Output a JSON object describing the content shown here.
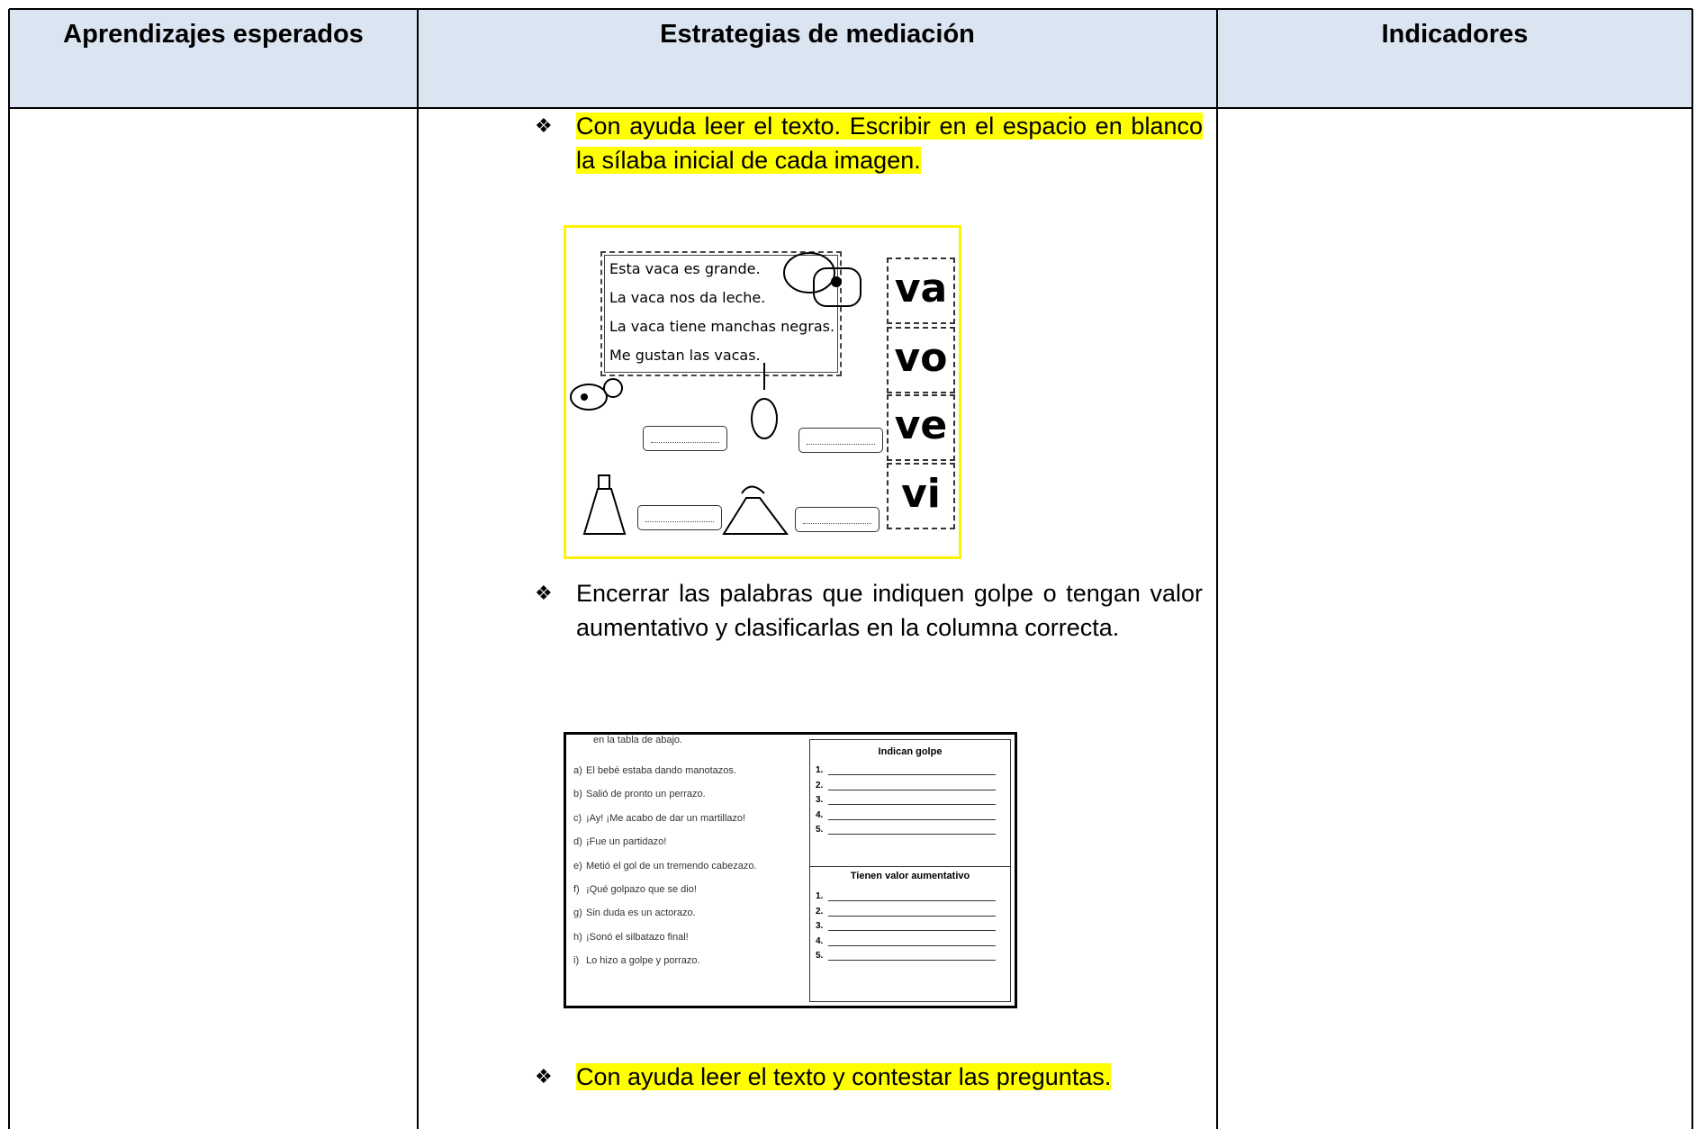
{
  "headers": [
    "Aprendizajes esperados",
    "Estrategias de mediación",
    "Indicadores"
  ],
  "strategies": [
    {
      "text": "Con ayuda leer el texto. Escribir en el espacio en blanco la sílaba inicial de cada imagen.",
      "highlight": true
    },
    {
      "text": "Encerrar las palabras que indiquen golpe o tengan valor aumentativo y clasificarlas en la columna correcta.",
      "highlight": false
    },
    {
      "text": "Con ayuda leer el texto y contestar las preguntas.",
      "highlight": true
    }
  ],
  "image1": {
    "sentences": [
      "Esta vaca es grande.",
      "La vaca nos da leche.",
      "La vaca tiene manchas negras.",
      "Me gustan las vacas."
    ],
    "syllables": [
      "va",
      "vo",
      "ve",
      "vi"
    ]
  },
  "image2": {
    "intro": "en la tabla de abajo.",
    "items": [
      {
        "label": "a)",
        "text": "El bebé estaba dando manotazos."
      },
      {
        "label": "b)",
        "text": "Salió de pronto un perrazo."
      },
      {
        "label": "c)",
        "text": "¡Ay! ¡Me acabo de dar un martillazo!"
      },
      {
        "label": "d)",
        "text": "¡Fue un partidazo!"
      },
      {
        "label": "e)",
        "text": "Metió el gol de un tremendo cabezazo."
      },
      {
        "label": "f)",
        "text": "¡Qué golpazo que se dio!"
      },
      {
        "label": "g)",
        "text": "Sin duda es un actorazo."
      },
      {
        "label": "h)",
        "text": "¡Sonó el silbatazo final!"
      },
      {
        "label": "i)",
        "text": "Lo hizo a golpe y porrazo."
      }
    ],
    "box_titles": [
      "Indican golpe",
      "Tienen valor aumentativo"
    ],
    "numbers": [
      "1.",
      "2.",
      "3.",
      "4.",
      "5."
    ]
  }
}
